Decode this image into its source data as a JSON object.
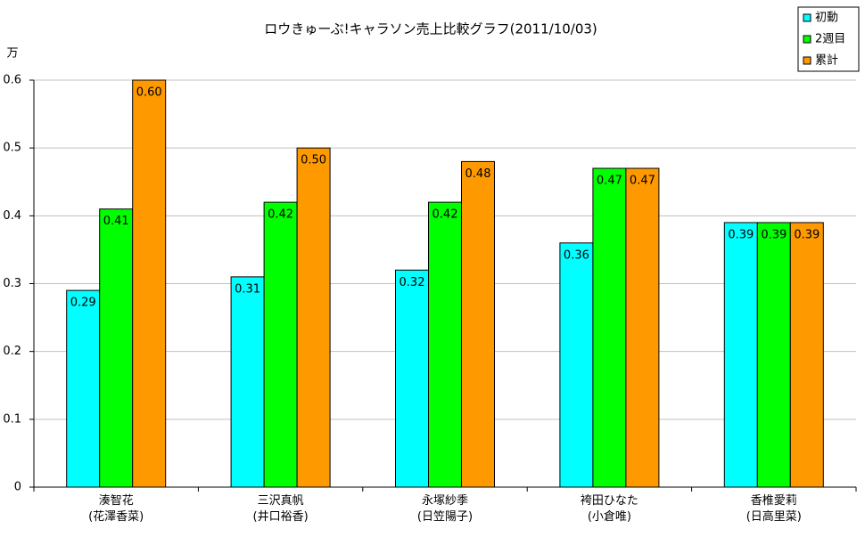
{
  "chart_data": {
    "type": "bar",
    "title": "ロウきゅーぶ!キャラソン売上比較グラフ(2011/10/03)",
    "y_label": "万",
    "categories": [
      "湊智花\n(花澤香菜)",
      "三沢真帆\n(井口裕香)",
      "永塚紗季\n(日笠陽子)",
      "袴田ひなた\n(小倉唯)",
      "香椎愛莉\n(日高里菜)"
    ],
    "series": [
      {
        "name": "初動",
        "color": "#00ffff",
        "values": [
          0.29,
          0.31,
          0.32,
          0.36,
          0.39
        ],
        "value_labels": [
          "0.29",
          "0.31",
          "0.32",
          "0.36",
          "0.39"
        ]
      },
      {
        "name": "2週目",
        "color": "#00ff00",
        "values": [
          0.41,
          0.42,
          0.42,
          0.47,
          0.39
        ],
        "value_labels": [
          "0.41",
          "0.42",
          "0.42",
          "0.47",
          "0.39"
        ]
      },
      {
        "name": "累計",
        "color": "#ff9900",
        "values": [
          0.6,
          0.5,
          0.48,
          0.47,
          0.39
        ],
        "value_labels": [
          "0.60",
          "0.50",
          "0.48",
          "0.47",
          "0.39"
        ]
      }
    ],
    "ylim": [
      0,
      0.6
    ],
    "yticks": [
      0,
      0.1,
      0.2,
      0.3,
      0.4,
      0.5,
      0.6
    ],
    "grid": true,
    "legend": "top-right"
  }
}
